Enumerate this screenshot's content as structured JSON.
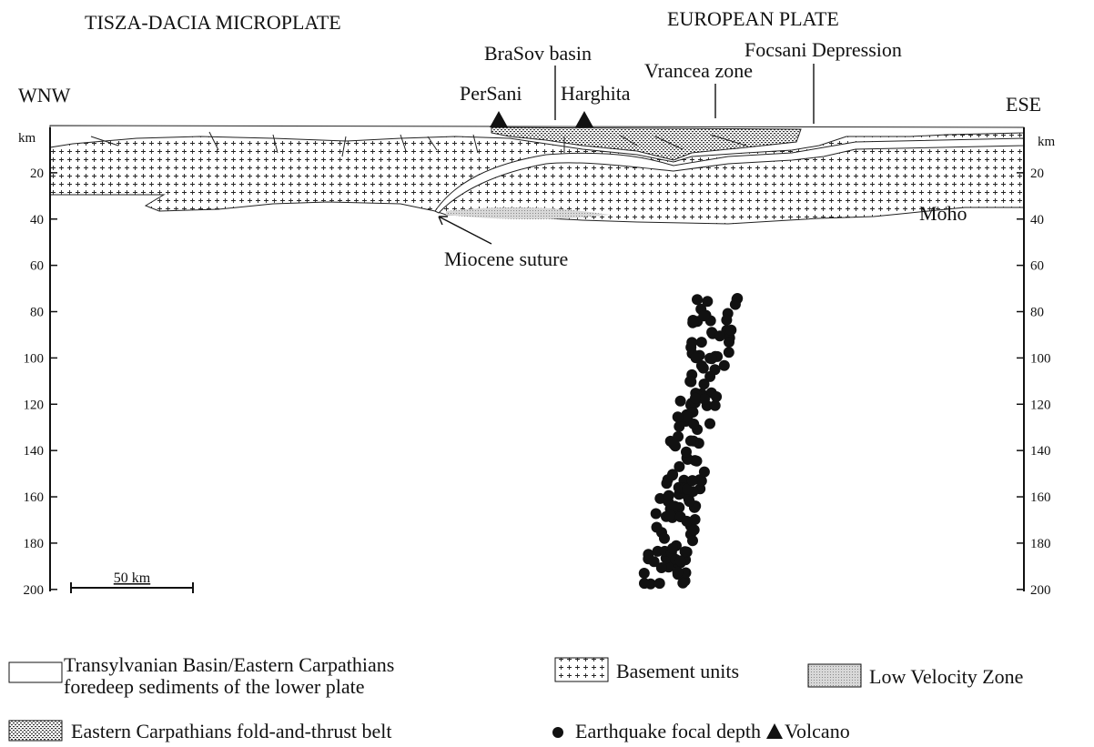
{
  "header": {
    "left_plate": "TISZA-DACIA MICROPLATE",
    "right_plate": "EUROPEAN PLATE"
  },
  "directions": {
    "west": "WNW",
    "east": "ESE"
  },
  "features": {
    "persani": "PerSani",
    "brasov": "BraSov basin",
    "harghita": "Harghita",
    "vrancea": "Vrancea zone",
    "focsani": "Focsani Depression",
    "suture": "Miocene suture",
    "moho": "Moho"
  },
  "depth_axis": {
    "unit": "km",
    "ticks": [
      20,
      40,
      60,
      80,
      100,
      120,
      140,
      160,
      180,
      200
    ]
  },
  "scale_bar": "50 km",
  "legend": {
    "sediments_line1": "Transylvanian  Basin/Eastern Carpathians",
    "sediments_line2": "foredeep sediments of the lower plate",
    "basement": "Basement units",
    "lvz": "Low Velocity Zone",
    "thrust_belt": "Eastern Carpathians fold-and-thrust belt",
    "earthquake": "Earthquake focal depth",
    "volcano": "Volcano"
  }
}
